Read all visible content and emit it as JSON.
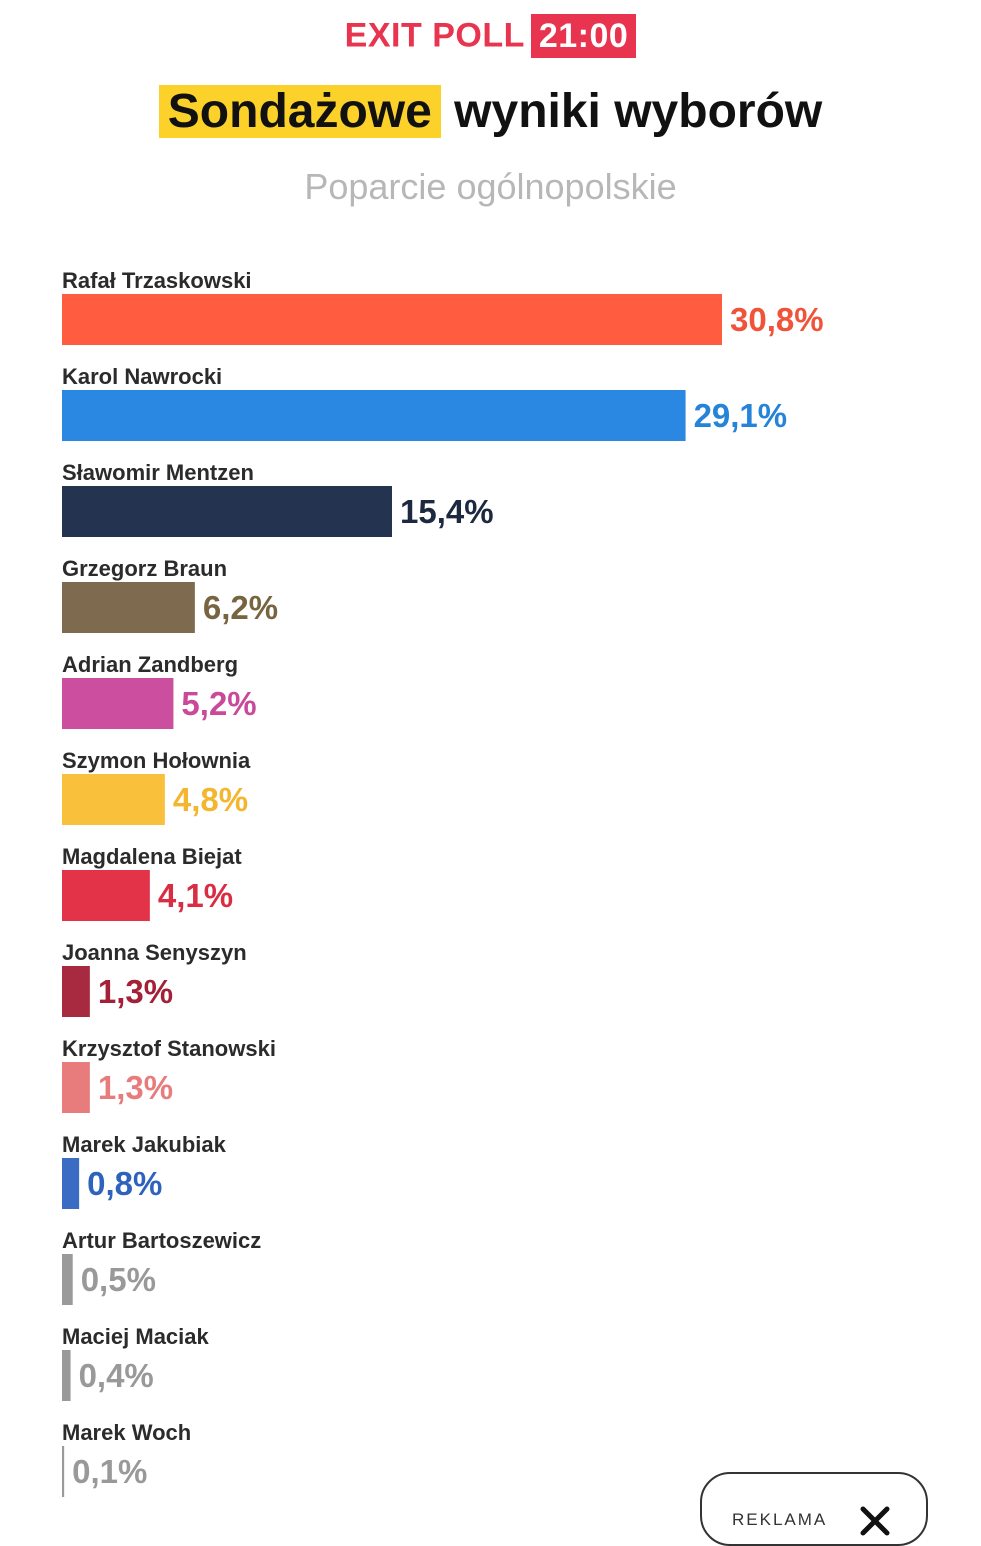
{
  "header": {
    "exit_label": "EXIT POLL",
    "time": "21:00",
    "title_highlight": "Sondażowe",
    "title_rest": "wyniki wyborów",
    "subtitle": "Poparcie ogólnopolskie"
  },
  "ad": {
    "label": "REKLAMA",
    "close_icon": "close-icon"
  },
  "chart_data": {
    "type": "bar",
    "orientation": "horizontal",
    "title": "Sondażowe wyniki wyborów",
    "subtitle": "Poparcie ogólnopolskie",
    "unit": "%",
    "categories": [
      "Rafał Trzaskowski",
      "Karol Nawrocki",
      "Sławomir Mentzen",
      "Grzegorz Braun",
      "Adrian Zandberg",
      "Szymon Hołownia",
      "Magdalena Biejat",
      "Joanna Senyszyn",
      "Krzysztof Stanowski",
      "Marek Jakubiak",
      "Artur Bartoszewicz",
      "Maciej Maciak",
      "Marek Woch"
    ],
    "values": [
      30.8,
      29.1,
      15.4,
      6.2,
      5.2,
      4.8,
      4.1,
      1.3,
      1.3,
      0.8,
      0.5,
      0.4,
      0.1
    ],
    "value_labels": [
      "30,8%",
      "29,1%",
      "15,4%",
      "6,2%",
      "5,2%",
      "4,8%",
      "4,1%",
      "1,3%",
      "1,3%",
      "0,8%",
      "0,5%",
      "0,4%",
      "0,1%"
    ],
    "colors": [
      "#ff5c40",
      "#2a88e2",
      "#24334f",
      "#7d6a4f",
      "#cc4e9e",
      "#f9c03b",
      "#e23348",
      "#a82a40",
      "#e87c7c",
      "#3b6cc4",
      "#9a9a9a",
      "#9a9a9a",
      "#9a9a9a"
    ],
    "label_colors": [
      "#f0533a",
      "#2583da",
      "#1c2940",
      "#76653f",
      "#c94a98",
      "#f3b62e",
      "#d92d43",
      "#a32036",
      "#e87c7c",
      "#2f62bd",
      "#999999",
      "#999999",
      "#999999"
    ],
    "xlim": [
      0,
      31
    ],
    "grid": false,
    "legend": "none"
  }
}
